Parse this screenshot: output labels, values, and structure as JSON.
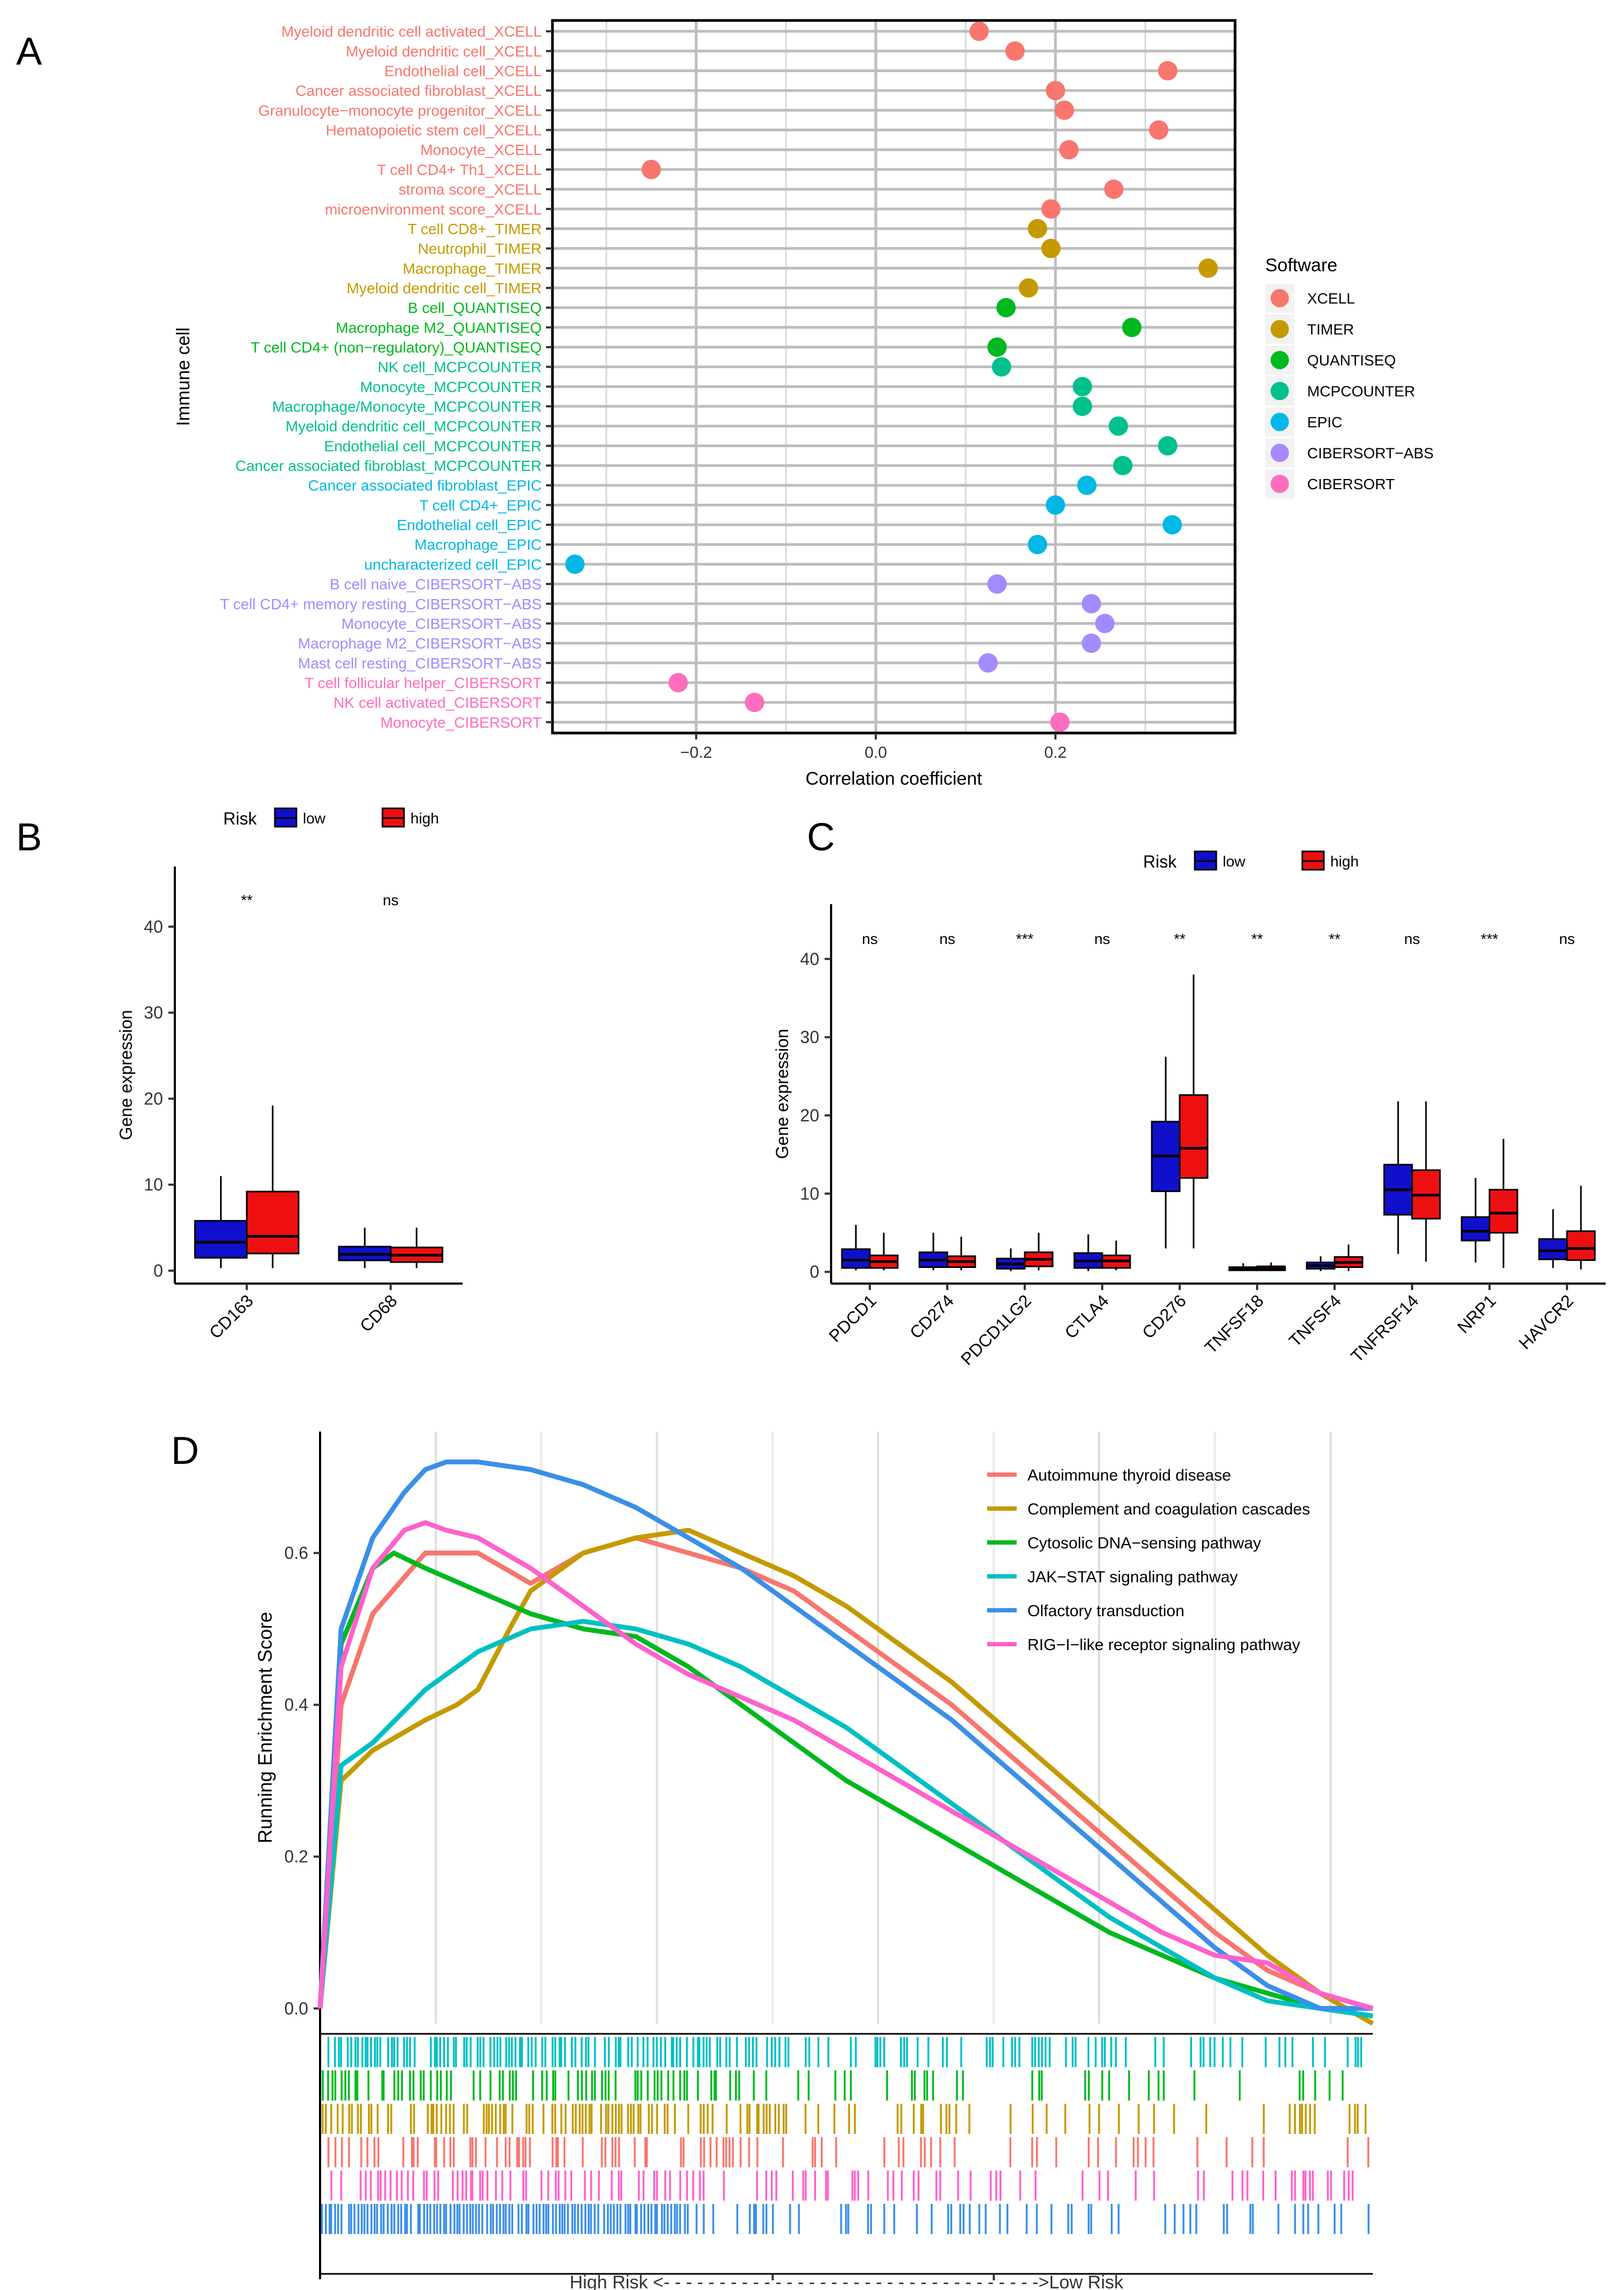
{
  "chart_data": [
    {
      "panel": "A",
      "type": "scatter",
      "xlabel": "Correlation coefficient",
      "ylabel": "Immune cell",
      "xlim": [
        -0.36,
        0.4
      ],
      "xticks": [
        -0.2,
        0.0,
        0.2
      ],
      "xtick_labels": [
        "−0.2",
        "0.0",
        "0.2"
      ],
      "grid": true,
      "legend": {
        "title": "Software",
        "position": "right",
        "entries": [
          {
            "name": "XCELL",
            "color": "#F8766D"
          },
          {
            "name": "TIMER",
            "color": "#C49A00"
          },
          {
            "name": "QUANTISEQ",
            "color": "#00B81F"
          },
          {
            "name": "MCPCOUNTER",
            "color": "#00C08D"
          },
          {
            "name": "EPIC",
            "color": "#00B8E5"
          },
          {
            "name": "CIBERSORT−ABS",
            "color": "#A58AFF"
          },
          {
            "name": "CIBERSORT",
            "color": "#FF6DBD"
          }
        ]
      },
      "points": [
        {
          "label": "Myeloid dendritic cell activated_XCELL",
          "software": "XCELL",
          "value": 0.115
        },
        {
          "label": "Myeloid dendritic cell_XCELL",
          "software": "XCELL",
          "value": 0.155
        },
        {
          "label": "Endothelial cell_XCELL",
          "software": "XCELL",
          "value": 0.325
        },
        {
          "label": "Cancer associated fibroblast_XCELL",
          "software": "XCELL",
          "value": 0.2
        },
        {
          "label": "Granulocyte−monocyte progenitor_XCELL",
          "software": "XCELL",
          "value": 0.21
        },
        {
          "label": "Hematopoietic stem cell_XCELL",
          "software": "XCELL",
          "value": 0.315
        },
        {
          "label": "Monocyte_XCELL",
          "software": "XCELL",
          "value": 0.215
        },
        {
          "label": "T cell CD4+ Th1_XCELL",
          "software": "XCELL",
          "value": -0.25
        },
        {
          "label": "stroma score_XCELL",
          "software": "XCELL",
          "value": 0.265
        },
        {
          "label": "microenvironment score_XCELL",
          "software": "XCELL",
          "value": 0.195
        },
        {
          "label": "T cell CD8+_TIMER",
          "software": "TIMER",
          "value": 0.18
        },
        {
          "label": "Neutrophil_TIMER",
          "software": "TIMER",
          "value": 0.195
        },
        {
          "label": "Macrophage_TIMER",
          "software": "TIMER",
          "value": 0.37
        },
        {
          "label": "Myeloid dendritic cell_TIMER",
          "software": "TIMER",
          "value": 0.17
        },
        {
          "label": "B cell_QUANTISEQ",
          "software": "QUANTISEQ",
          "value": 0.145
        },
        {
          "label": "Macrophage M2_QUANTISEQ",
          "software": "QUANTISEQ",
          "value": 0.285
        },
        {
          "label": "T cell CD4+ (non−regulatory)_QUANTISEQ",
          "software": "QUANTISEQ",
          "value": 0.135
        },
        {
          "label": "NK cell_MCPCOUNTER",
          "software": "MCPCOUNTER",
          "value": 0.14
        },
        {
          "label": "Monocyte_MCPCOUNTER",
          "software": "MCPCOUNTER",
          "value": 0.23
        },
        {
          "label": "Macrophage/Monocyte_MCPCOUNTER",
          "software": "MCPCOUNTER",
          "value": 0.23
        },
        {
          "label": "Myeloid dendritic cell_MCPCOUNTER",
          "software": "MCPCOUNTER",
          "value": 0.27
        },
        {
          "label": "Endothelial cell_MCPCOUNTER",
          "software": "MCPCOUNTER",
          "value": 0.325
        },
        {
          "label": "Cancer associated fibroblast_MCPCOUNTER",
          "software": "MCPCOUNTER",
          "value": 0.275
        },
        {
          "label": "Cancer associated fibroblast_EPIC",
          "software": "EPIC",
          "value": 0.235
        },
        {
          "label": "T cell CD4+_EPIC",
          "software": "EPIC",
          "value": 0.2
        },
        {
          "label": "Endothelial cell_EPIC",
          "software": "EPIC",
          "value": 0.33
        },
        {
          "label": "Macrophage_EPIC",
          "software": "EPIC",
          "value": 0.18
        },
        {
          "label": "uncharacterized cell_EPIC",
          "software": "EPIC",
          "value": -0.335
        },
        {
          "label": "B cell naive_CIBERSORT−ABS",
          "software": "CIBERSORT−ABS",
          "value": 0.135
        },
        {
          "label": "T cell CD4+ memory resting_CIBERSORT−ABS",
          "software": "CIBERSORT−ABS",
          "value": 0.24
        },
        {
          "label": "Monocyte_CIBERSORT−ABS",
          "software": "CIBERSORT−ABS",
          "value": 0.255
        },
        {
          "label": "Macrophage M2_CIBERSORT−ABS",
          "software": "CIBERSORT−ABS",
          "value": 0.24
        },
        {
          "label": "Mast cell resting_CIBERSORT−ABS",
          "software": "CIBERSORT−ABS",
          "value": 0.125
        },
        {
          "label": "T cell follicular helper_CIBERSORT",
          "software": "CIBERSORT",
          "value": -0.22
        },
        {
          "label": "NK cell activated_CIBERSORT",
          "software": "CIBERSORT",
          "value": -0.135
        },
        {
          "label": "Monocyte_CIBERSORT",
          "software": "CIBERSORT",
          "value": 0.205
        }
      ]
    },
    {
      "panel": "B",
      "type": "box",
      "xlabel": "",
      "ylabel": "Gene expression",
      "ylim": [
        -1.5,
        47
      ],
      "yticks": [
        0,
        10,
        20,
        30,
        40
      ],
      "legend": {
        "title": "Risk",
        "position": "top",
        "entries": [
          {
            "name": "low",
            "color": "#1010CC"
          },
          {
            "name": "high",
            "color": "#EE1010"
          }
        ]
      },
      "categories": [
        "CD163",
        "CD68"
      ],
      "significance": [
        "**",
        "ns"
      ],
      "series": [
        {
          "name": "low",
          "boxes": [
            {
              "min": 0.3,
              "q1": 1.5,
              "median": 3.3,
              "q3": 5.8,
              "max": 11
            },
            {
              "min": 0.3,
              "q1": 1.2,
              "median": 1.9,
              "q3": 2.8,
              "max": 5
            }
          ]
        },
        {
          "name": "high",
          "boxes": [
            {
              "min": 0.3,
              "q1": 2.0,
              "median": 4.0,
              "q3": 9.2,
              "max": 19.2
            },
            {
              "min": 0.3,
              "q1": 1.0,
              "median": 1.8,
              "q3": 2.7,
              "max": 5
            }
          ]
        }
      ]
    },
    {
      "panel": "C",
      "type": "box",
      "xlabel": "",
      "ylabel": "Gene expression",
      "ylim": [
        -1.5,
        47
      ],
      "yticks": [
        0,
        10,
        20,
        30,
        40
      ],
      "legend": {
        "title": "Risk",
        "position": "top",
        "entries": [
          {
            "name": "low",
            "color": "#1010CC"
          },
          {
            "name": "high",
            "color": "#EE1010"
          }
        ]
      },
      "categories": [
        "PDCD1",
        "CD274",
        "PDCD1LG2",
        "CTLA4",
        "CD276",
        "TNFSF18",
        "TNFSF4",
        "TNFRSF14",
        "NRP1",
        "HAVCR2"
      ],
      "significance": [
        "ns",
        "ns",
        "***",
        "ns",
        "**",
        "**",
        "**",
        "ns",
        "***",
        "ns"
      ],
      "series": [
        {
          "name": "low",
          "boxes": [
            {
              "min": 0.2,
              "q1": 0.5,
              "median": 1.5,
              "q3": 2.9,
              "max": 6
            },
            {
              "min": 0.2,
              "q1": 0.6,
              "median": 1.5,
              "q3": 2.5,
              "max": 5
            },
            {
              "min": 0.1,
              "q1": 0.4,
              "median": 1.0,
              "q3": 1.7,
              "max": 3
            },
            {
              "min": 0.1,
              "q1": 0.5,
              "median": 1.4,
              "q3": 2.4,
              "max": 4.8
            },
            {
              "min": 3,
              "q1": 10.3,
              "median": 14.8,
              "q3": 19.2,
              "max": 27.5
            },
            {
              "min": 0.1,
              "q1": 0.2,
              "median": 0.4,
              "q3": 0.6,
              "max": 1.1
            },
            {
              "min": 0.1,
              "q1": 0.4,
              "median": 0.8,
              "q3": 1.2,
              "max": 2
            },
            {
              "min": 2.3,
              "q1": 7.3,
              "median": 10.5,
              "q3": 13.7,
              "max": 21.8
            },
            {
              "min": 1.2,
              "q1": 4.0,
              "median": 5.2,
              "q3": 7.0,
              "max": 12
            },
            {
              "min": 0.5,
              "q1": 1.6,
              "median": 2.7,
              "q3": 4.2,
              "max": 8
            }
          ]
        },
        {
          "name": "high",
          "boxes": [
            {
              "min": 0.2,
              "q1": 0.5,
              "median": 1.3,
              "q3": 2.1,
              "max": 5
            },
            {
              "min": 0.2,
              "q1": 0.6,
              "median": 1.3,
              "q3": 2.0,
              "max": 4.5
            },
            {
              "min": 0.2,
              "q1": 0.7,
              "median": 1.6,
              "q3": 2.5,
              "max": 5
            },
            {
              "min": 0.2,
              "q1": 0.5,
              "median": 1.4,
              "q3": 2.1,
              "max": 4
            },
            {
              "min": 3,
              "q1": 12.0,
              "median": 15.8,
              "q3": 22.6,
              "max": 38
            },
            {
              "min": 0.1,
              "q1": 0.2,
              "median": 0.4,
              "q3": 0.7,
              "max": 1.2
            },
            {
              "min": 0.1,
              "q1": 0.6,
              "median": 1.2,
              "q3": 1.9,
              "max": 3.5
            },
            {
              "min": 1.3,
              "q1": 6.8,
              "median": 9.8,
              "q3": 13.0,
              "max": 21.8
            },
            {
              "min": 0.5,
              "q1": 5.0,
              "median": 7.5,
              "q3": 10.5,
              "max": 17
            },
            {
              "min": 0.3,
              "q1": 1.5,
              "median": 3.0,
              "q3": 5.2,
              "max": 11
            }
          ]
        }
      ]
    },
    {
      "panel": "D",
      "type": "line",
      "xlabel": "High Risk <- - - - - - - - - - - - - - - - - - - - - - - - - - - - - - - - - ->Low Risk",
      "ylabel": "Running Enrichment Score",
      "ylim": [
        -0.02,
        0.76
      ],
      "yticks": [
        0.0,
        0.2,
        0.4,
        0.6
      ],
      "xlim": [
        0,
        1
      ],
      "legend_position": "top-right",
      "series": [
        {
          "name": "Autoimmune thyroid disease",
          "color": "#F8766D",
          "x": [
            0,
            0.02,
            0.05,
            0.1,
            0.15,
            0.2,
            0.25,
            0.3,
            0.35,
            0.4,
            0.45,
            0.5,
            0.55,
            0.6,
            0.65,
            0.7,
            0.75,
            0.8,
            0.85,
            0.9,
            0.95,
            1.0
          ],
          "y": [
            0.0,
            0.4,
            0.52,
            0.6,
            0.6,
            0.56,
            0.6,
            0.62,
            0.6,
            0.58,
            0.55,
            0.5,
            0.45,
            0.4,
            0.34,
            0.28,
            0.22,
            0.16,
            0.1,
            0.05,
            0.02,
            0.0
          ]
        },
        {
          "name": "Complement and coagulation cascades",
          "color": "#C49A00",
          "x": [
            0,
            0.02,
            0.05,
            0.1,
            0.13,
            0.15,
            0.18,
            0.2,
            0.25,
            0.3,
            0.35,
            0.4,
            0.45,
            0.5,
            0.55,
            0.6,
            0.65,
            0.7,
            0.75,
            0.8,
            0.85,
            0.9,
            0.95,
            1.0
          ],
          "y": [
            0.0,
            0.3,
            0.34,
            0.38,
            0.4,
            0.42,
            0.5,
            0.55,
            0.6,
            0.62,
            0.63,
            0.6,
            0.57,
            0.53,
            0.48,
            0.43,
            0.37,
            0.31,
            0.25,
            0.19,
            0.13,
            0.07,
            0.02,
            -0.02
          ]
        },
        {
          "name": "Cytosolic DNA−sensing pathway",
          "color": "#00B81F",
          "x": [
            0,
            0.02,
            0.05,
            0.07,
            0.1,
            0.15,
            0.2,
            0.25,
            0.3,
            0.35,
            0.4,
            0.45,
            0.5,
            0.55,
            0.6,
            0.65,
            0.7,
            0.75,
            0.8,
            0.85,
            0.9,
            0.95,
            1.0
          ],
          "y": [
            0.0,
            0.48,
            0.58,
            0.6,
            0.58,
            0.55,
            0.52,
            0.5,
            0.49,
            0.45,
            0.4,
            0.35,
            0.3,
            0.26,
            0.22,
            0.18,
            0.14,
            0.1,
            0.07,
            0.04,
            0.02,
            0.0,
            -0.01
          ]
        },
        {
          "name": "JAK−STAT signaling pathway",
          "color": "#00BFC4",
          "x": [
            0,
            0.02,
            0.05,
            0.1,
            0.15,
            0.2,
            0.25,
            0.3,
            0.35,
            0.4,
            0.45,
            0.5,
            0.55,
            0.6,
            0.65,
            0.7,
            0.75,
            0.8,
            0.85,
            0.9,
            0.95,
            1.0
          ],
          "y": [
            0.0,
            0.32,
            0.35,
            0.42,
            0.47,
            0.5,
            0.51,
            0.5,
            0.48,
            0.45,
            0.41,
            0.37,
            0.32,
            0.27,
            0.22,
            0.17,
            0.12,
            0.08,
            0.04,
            0.01,
            0.0,
            -0.01
          ]
        },
        {
          "name": "Olfactory transduction",
          "color": "#3B8FE8",
          "x": [
            0,
            0.02,
            0.05,
            0.08,
            0.1,
            0.12,
            0.15,
            0.2,
            0.25,
            0.3,
            0.35,
            0.4,
            0.45,
            0.5,
            0.55,
            0.6,
            0.65,
            0.7,
            0.75,
            0.8,
            0.85,
            0.9,
            0.95,
            1.0
          ],
          "y": [
            0.0,
            0.5,
            0.62,
            0.68,
            0.71,
            0.72,
            0.72,
            0.71,
            0.69,
            0.66,
            0.62,
            0.58,
            0.53,
            0.48,
            0.43,
            0.38,
            0.32,
            0.26,
            0.2,
            0.14,
            0.08,
            0.03,
            0.0,
            0.0
          ]
        },
        {
          "name": "RIG−I−like receptor signaling pathway",
          "color": "#FF61CC",
          "x": [
            0,
            0.02,
            0.05,
            0.08,
            0.1,
            0.12,
            0.15,
            0.2,
            0.25,
            0.3,
            0.35,
            0.4,
            0.45,
            0.5,
            0.55,
            0.6,
            0.65,
            0.7,
            0.75,
            0.8,
            0.85,
            0.9,
            0.95,
            1.0
          ],
          "y": [
            0.0,
            0.45,
            0.58,
            0.63,
            0.64,
            0.63,
            0.62,
            0.58,
            0.53,
            0.48,
            0.44,
            0.41,
            0.38,
            0.34,
            0.3,
            0.26,
            0.22,
            0.18,
            0.14,
            0.1,
            0.07,
            0.06,
            0.02,
            0.0
          ]
        }
      ],
      "rug_rows": [
        "JAK−STAT signaling pathway",
        "Cytosolic DNA−sensing pathway",
        "Complement and coagulation cascades",
        "Autoimmune thyroid disease",
        "RIG−I−like receptor signaling pathway",
        "Olfactory transduction"
      ]
    }
  ],
  "panel_labels": {
    "A": "A",
    "B": "B",
    "C": "C",
    "D": "D"
  }
}
